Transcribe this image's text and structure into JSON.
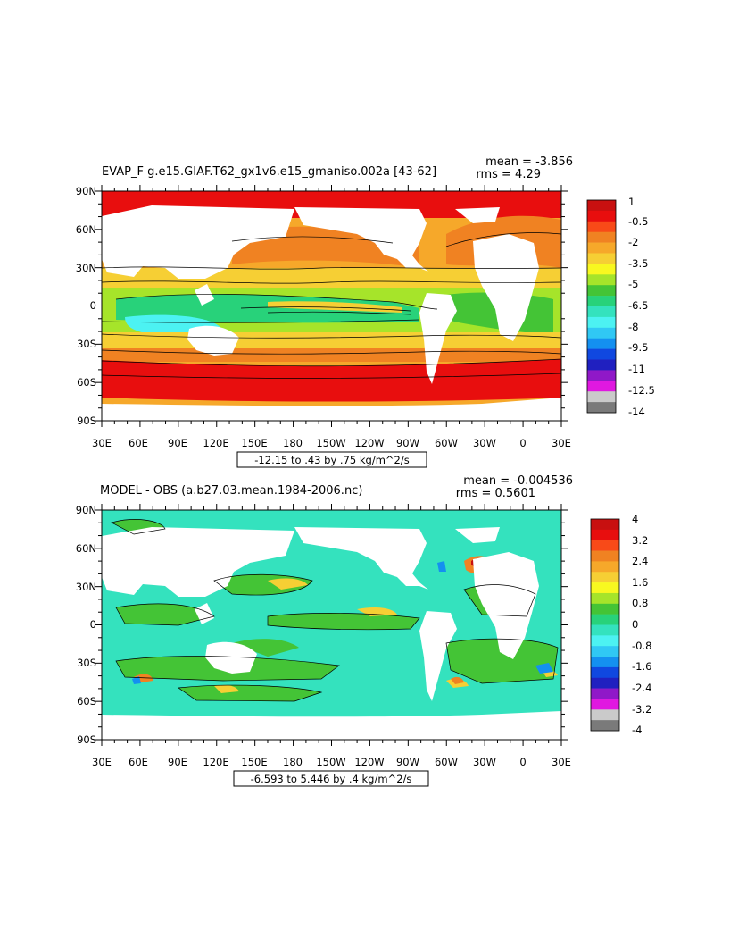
{
  "figure": {
    "panels": [
      {
        "title": "EVAP_F g.e15.GIAF.T62_gx1v6.e15_gmaniso.002a [43-62]",
        "mean_text": "mean = -3.856",
        "rms_text": "rms = 4.29",
        "range_text": "-12.15 to .43 by .75 kg/m^2/s",
        "lat_labels": [
          "90N",
          "60N",
          "30N",
          "0",
          "30S",
          "60S",
          "90S"
        ],
        "lon_labels": [
          "30E",
          "60E",
          "90E",
          "120E",
          "150E",
          "180",
          "150W",
          "120W",
          "90W",
          "60W",
          "30W",
          "0",
          "30E"
        ],
        "colorbar": {
          "labels": [
            "1",
            "-0.5",
            "-2",
            "-3.5",
            "-5",
            "-6.5",
            "-8",
            "-9.5",
            "-11",
            "-12.5",
            "-14"
          ],
          "colors": [
            "#c81010",
            "#e80e0e",
            "#f84a18",
            "#f08222",
            "#f6a82a",
            "#f6cf34",
            "#f8f820",
            "#a6e42a",
            "#44c436",
            "#28d27a",
            "#34e2be",
            "#4cf2f2",
            "#30c8f4",
            "#1490f0",
            "#1048e0",
            "#2020c0",
            "#9018c8",
            "#e018e0",
            "#cacaca",
            "#7a7a7a"
          ]
        }
      },
      {
        "title": "MODEL - OBS (a.b27.03.mean.1984-2006.nc)",
        "mean_text": "mean = -0.004536",
        "rms_text": "rms = 0.5601",
        "range_text": "-6.593 to 5.446 by .4 kg/m^2/s",
        "lat_labels": [
          "90N",
          "60N",
          "30N",
          "0",
          "30S",
          "60S",
          "90S"
        ],
        "lon_labels": [
          "30E",
          "60E",
          "90E",
          "120E",
          "150E",
          "180",
          "150W",
          "120W",
          "90W",
          "60W",
          "30W",
          "0",
          "30E"
        ],
        "colorbar": {
          "labels": [
            "4",
            "3.2",
            "2.4",
            "1.6",
            "0.8",
            "0",
            "-0.8",
            "-1.6",
            "-2.4",
            "-3.2",
            "-4"
          ],
          "colors": [
            "#c81010",
            "#e80e0e",
            "#f84a18",
            "#f08222",
            "#f6a82a",
            "#f6cf34",
            "#f8f820",
            "#a6e42a",
            "#44c436",
            "#28d27a",
            "#34e2be",
            "#4cf2f2",
            "#30c8f4",
            "#1490f0",
            "#1048e0",
            "#2020c0",
            "#9018c8",
            "#e018e0",
            "#cacaca",
            "#7a7a7a"
          ]
        }
      }
    ]
  }
}
